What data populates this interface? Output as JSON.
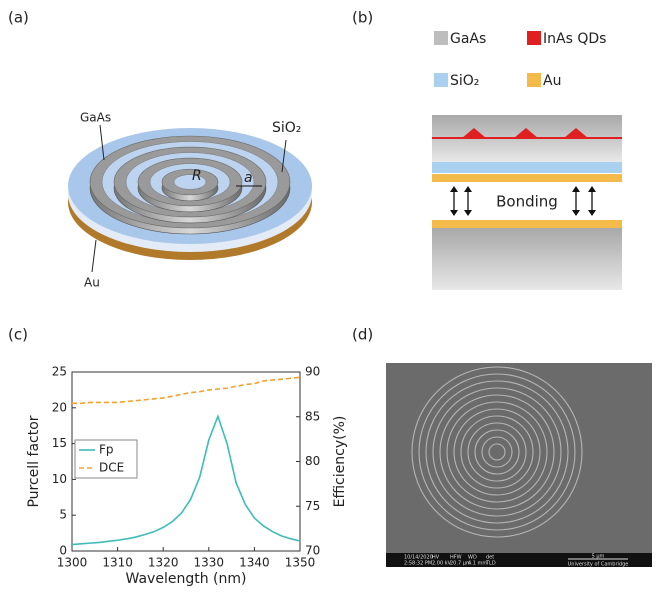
{
  "panels": [
    "(a)",
    "(b)",
    "(c)",
    "(d)"
  ],
  "diagram_a": {
    "labels": {
      "gaas": "GaAs",
      "sio2": "SiO₂",
      "au": "Au",
      "r": "R",
      "a": "a"
    }
  },
  "diagram_b": {
    "legend": [
      "GaAs",
      "InAs QDs",
      "SiO₂",
      "Au"
    ],
    "bonding": "Bonding"
  },
  "chart_data": {
    "type": "line",
    "xlabel": "Wavelength (nm)",
    "ylabel": "Purcell factor",
    "y2label": "Efficiency(%)",
    "x": [
      1300,
      1302,
      1304,
      1306,
      1308,
      1310,
      1312,
      1314,
      1316,
      1318,
      1320,
      1322,
      1324,
      1326,
      1328,
      1330,
      1332,
      1334,
      1336,
      1338,
      1340,
      1342,
      1344,
      1346,
      1348,
      1350
    ],
    "series": [
      {
        "name": "Fp",
        "color": "#3dbcb8",
        "linestyle": "solid",
        "values": [
          0.9,
          1.0,
          1.1,
          1.2,
          1.35,
          1.5,
          1.7,
          1.95,
          2.3,
          2.7,
          3.3,
          4.1,
          5.3,
          7.2,
          10.3,
          15.5,
          18.8,
          15.0,
          9.5,
          6.5,
          4.6,
          3.5,
          2.7,
          2.1,
          1.7,
          1.4
        ]
      },
      {
        "name": "DCE",
        "color": "#f5a030",
        "linestyle": "dashed",
        "axis": "y2",
        "values": [
          86.5,
          86.5,
          86.6,
          86.6,
          86.6,
          86.6,
          86.7,
          86.8,
          86.9,
          87.0,
          87.1,
          87.3,
          87.5,
          87.7,
          87.8,
          88.0,
          88.1,
          88.2,
          88.4,
          88.6,
          88.7,
          89.0,
          89.1,
          89.2,
          89.3,
          89.4
        ]
      }
    ],
    "xlim": [
      1300,
      1350
    ],
    "xticks": [
      1300,
      1310,
      1320,
      1330,
      1340,
      1350
    ],
    "ylim": [
      0,
      25
    ],
    "yticks": [
      0,
      5,
      10,
      15,
      20,
      25
    ],
    "y2lim": [
      70,
      90
    ],
    "y2ticks": [
      70,
      75,
      80,
      85,
      90
    ],
    "legend": "left"
  },
  "sem_d": {
    "info": [
      "10/14/2020",
      "2:58:32 PM",
      "HV",
      "2.00 kV",
      "HFW",
      "20.7 μm",
      "WD",
      "4.1 mm",
      "det",
      "TLD"
    ],
    "scale": "5 μm",
    "institution": "University of Cambridge"
  }
}
